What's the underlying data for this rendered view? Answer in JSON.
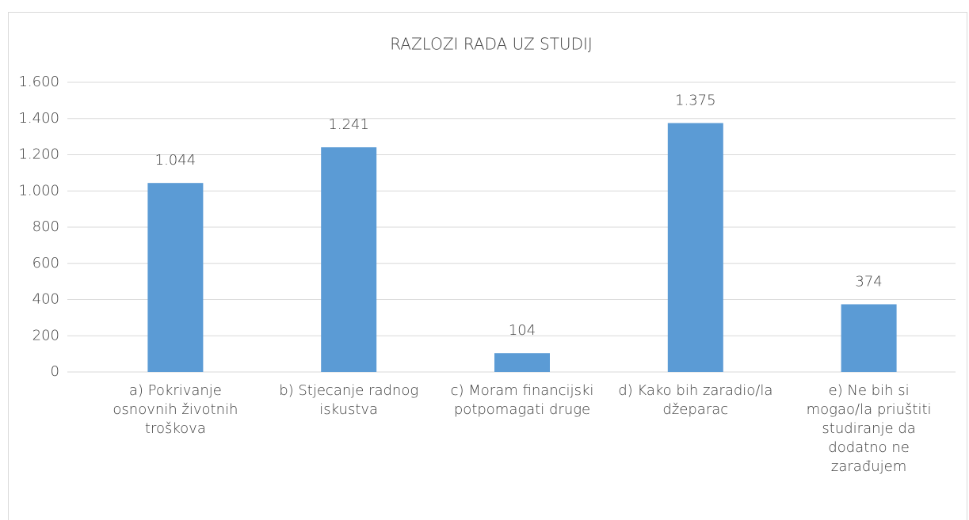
{
  "chart_data": {
    "type": "bar",
    "title": "RAZLOZI RADA UZ STUDIJ",
    "categories": [
      "a) Pokrivanje osnovnih životnih troškova",
      "b) Stjecanje radnog iskustva",
      "c) Moram financijski potpomagati druge",
      "d) Kako bih zaradio/la džeparac",
      "e) Ne bih si mogao/la priuštiti studiranje da dodatno ne zarađujem"
    ],
    "values": [
      1044,
      1241,
      104,
      1375,
      374
    ],
    "value_labels": [
      "1.044",
      "1.241",
      "104",
      "1.375",
      "374"
    ],
    "color": "#5b9bd5",
    "ylim": [
      0,
      1600
    ],
    "yticks": [
      0,
      200,
      400,
      600,
      800,
      {
        "value": 1000,
        "label": "1.000"
      },
      {
        "value": 1200,
        "label": "1.200"
      },
      {
        "value": 1400,
        "label": "1.400"
      },
      {
        "value": 1600,
        "label": "1.600"
      }
    ],
    "grid": true
  }
}
